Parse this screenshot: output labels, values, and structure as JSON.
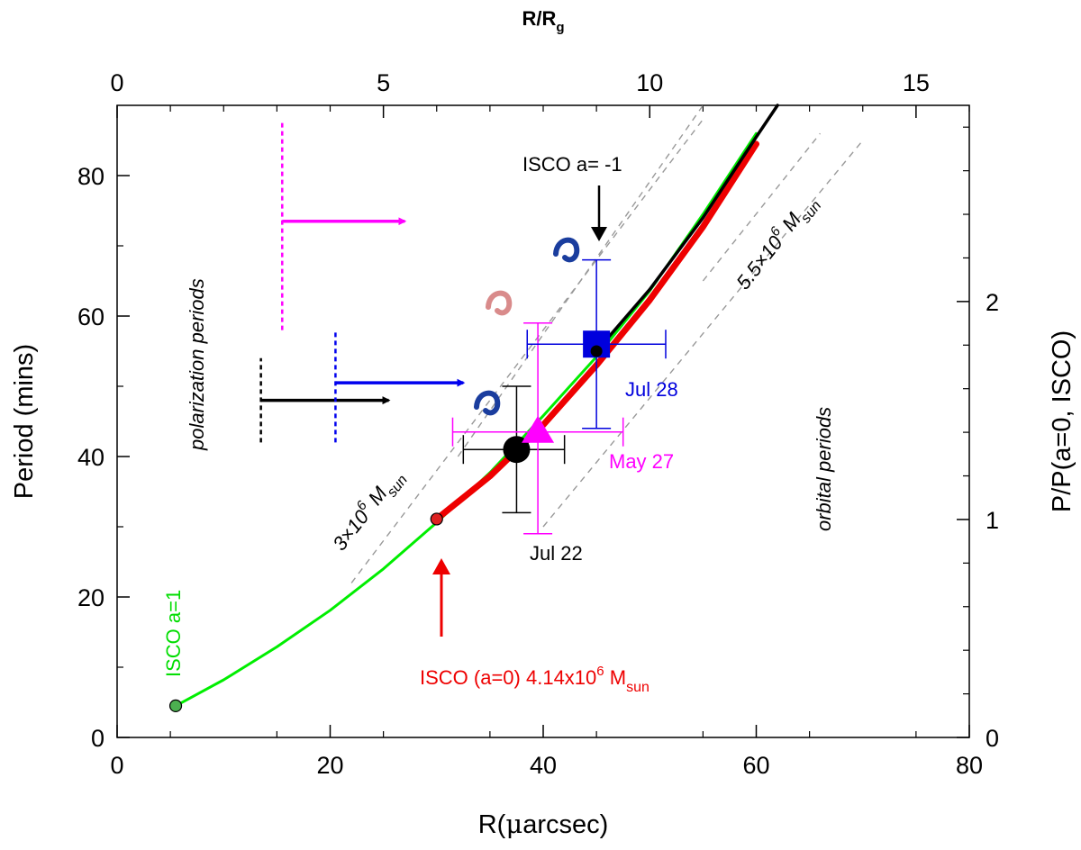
{
  "chart_data": {
    "type": "line",
    "title": "",
    "xlabel_prefix": "R(",
    "xlabel_symbol": "μ",
    "xlabel_suffix": "arcsec)",
    "ylabel": "Period (mins)",
    "top_xlabel_main": "R/R",
    "top_xlabel_sub": "g",
    "right_ylabel": "P/P(a=0, ISCO)",
    "xlim": [
      0,
      80
    ],
    "ylim": [
      0,
      90
    ],
    "xticks": [
      0,
      20,
      40,
      60,
      80
    ],
    "yticks": [
      0,
      20,
      40,
      60,
      80
    ],
    "top_xlim": [
      0,
      16
    ],
    "top_xticks": [
      0,
      5,
      10,
      15
    ],
    "right_ylim": [
      0,
      2.9
    ],
    "right_yticks": [
      0,
      1,
      2
    ],
    "series": [
      {
        "name": "ISCO a=1 curve",
        "color": "#00ee00",
        "x": [
          5.5,
          10,
          15,
          20,
          25,
          30,
          35,
          40,
          45,
          50,
          55,
          60
        ],
        "y": [
          4.5,
          8.2,
          12.9,
          18.1,
          24.0,
          30.6,
          37.7,
          45.8,
          54.2,
          63.6,
          74.5,
          86.0
        ]
      },
      {
        "name": "ISCO (a=0) 4.14x10^6 Msun curve",
        "color": "#ee0000",
        "x": [
          30,
          35,
          40,
          45,
          50,
          55,
          60
        ],
        "y": [
          31.1,
          37.2,
          44.5,
          53.0,
          62.3,
          72.7,
          84.5
        ]
      },
      {
        "name": "5.5x10^6 Msun curve",
        "color": "#000000",
        "x": [
          45,
          50,
          55,
          60,
          62
        ],
        "y": [
          55.0,
          63.8,
          74.0,
          85.5,
          90.0
        ]
      }
    ],
    "reference_lines": [
      {
        "name": "3x10^6 Msun",
        "x": [
          22,
          55
        ],
        "y": [
          22,
          88
        ]
      },
      {
        "name": "5.5x10^6 Msun ref",
        "x": [
          55,
          66
        ],
        "y": [
          65,
          86
        ]
      },
      {
        "name": "upper mass ref",
        "x": [
          32,
          55
        ],
        "y": [
          40,
          90
        ]
      },
      {
        "name": "lower mass ref",
        "x": [
          40,
          70
        ],
        "y": [
          30,
          85
        ]
      }
    ],
    "points": [
      {
        "label": "Jul 22",
        "x": 37.5,
        "y": 41,
        "xerr": [
          5,
          4.5
        ],
        "yerr": [
          9,
          9
        ],
        "marker": "circle",
        "color": "#000000"
      },
      {
        "label": "May 27",
        "x": 39.5,
        "y": 43.5,
        "xerr": [
          8,
          8
        ],
        "yerr": [
          14.5,
          15.5
        ],
        "marker": "triangle",
        "color": "#ff00ff"
      },
      {
        "label": "Jul 28",
        "x": 45,
        "y": 56,
        "xerr": [
          6.5,
          6.5
        ],
        "yerr": [
          12,
          12
        ],
        "marker": "square",
        "color": "#0000dd"
      }
    ],
    "limits": [
      {
        "name": "polarization limit magenta",
        "x": 15.5,
        "y_range": [
          58,
          88
        ],
        "arrow_y": 73.5,
        "arrow_to_x": 27,
        "color": "#ff00ff"
      },
      {
        "name": "polarization limit black",
        "x": 13.5,
        "y_range": [
          42,
          54
        ],
        "arrow_y": 48,
        "arrow_to_x": 25.5,
        "color": "#000000"
      },
      {
        "name": "polarization limit blue",
        "x": 20.5,
        "y_range": [
          42,
          58
        ],
        "arrow_y": 50.5,
        "arrow_to_x": 32.5,
        "color": "#0000ee"
      }
    ],
    "annotations": {
      "isco_a1": "ISCO a=1",
      "isco_a0_main": "ISCO (a=0) 4.14x10",
      "isco_a0_sup": "6",
      "isco_a0_mass": " M",
      "isco_a0_sub": "sun",
      "isco_am1": "ISCO a= -1",
      "mass_low_main": "3×10",
      "mass_low_sup": "6",
      "mass_low_mass": " M",
      "mass_low_sub": "sun",
      "mass_high_main": "5.5×10",
      "mass_high_sup": "6",
      "mass_high_mass": " M",
      "mass_high_sub": "sun",
      "polarization": "polarization periods",
      "orbital": "orbital periods"
    },
    "colors": {
      "green": "#00ee00",
      "red": "#ee0000",
      "magenta": "#ff00ff",
      "blue": "#0000ee",
      "dashed_ref": "#999999"
    }
  }
}
